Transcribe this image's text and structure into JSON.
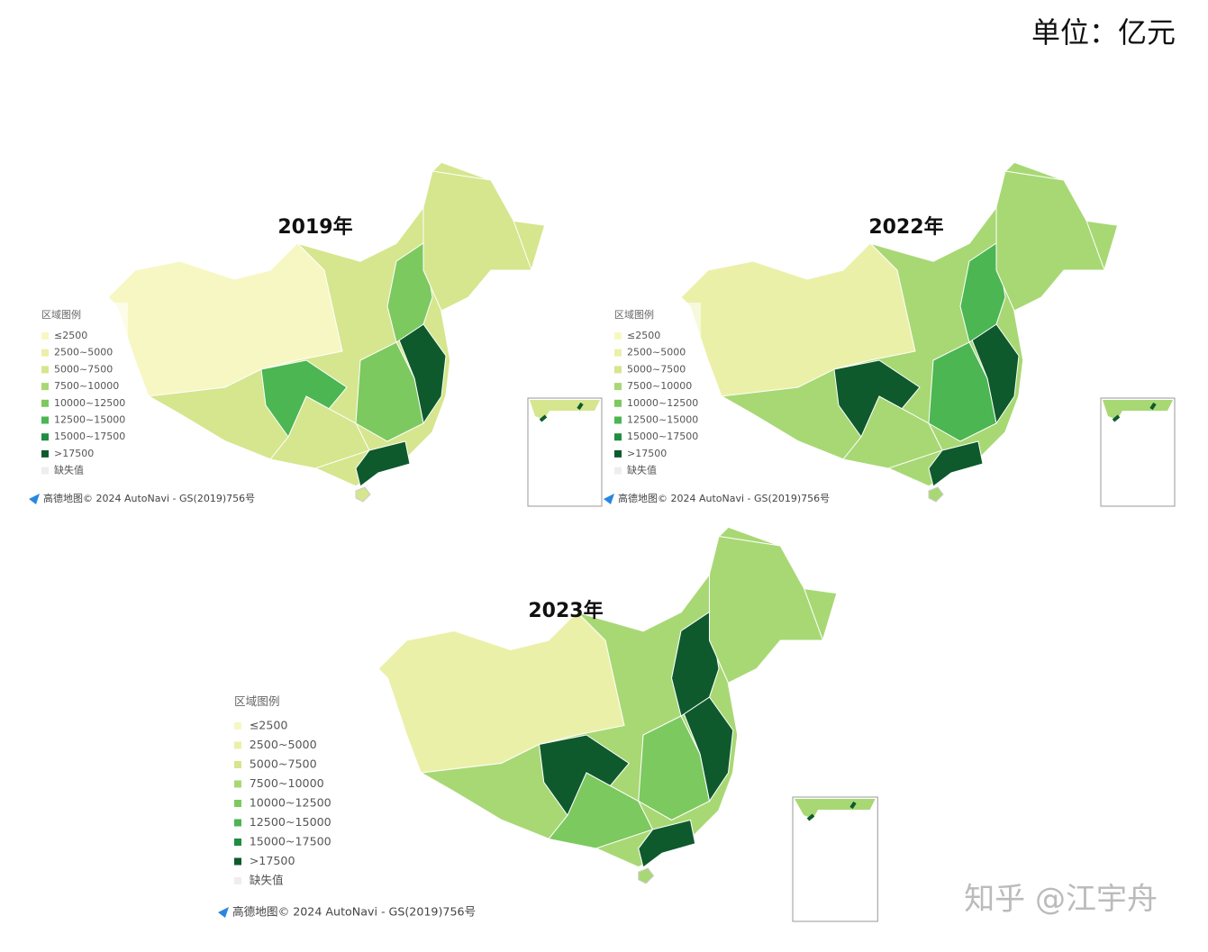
{
  "unit": "单位：亿元",
  "maps": [
    {
      "title": "2019年"
    },
    {
      "title": "2022年"
    },
    {
      "title": "2023年"
    }
  ],
  "legend": {
    "title": "区域图例",
    "items": [
      {
        "label": "≤2500",
        "color": "#f7f7c4"
      },
      {
        "label": "2500~5000",
        "color": "#ebf0a9"
      },
      {
        "label": "5000~7500",
        "color": "#d5e68e"
      },
      {
        "label": "7500~10000",
        "color": "#a8d874"
      },
      {
        "label": "10000~12500",
        "color": "#7cc95f"
      },
      {
        "label": "12500~15000",
        "color": "#4bb652"
      },
      {
        "label": "15000~17500",
        "color": "#1f8e40"
      },
      {
        "label": ">17500",
        "color": "#0e5a2d"
      },
      {
        "label": "缺失值",
        "color": "#eeeeee"
      }
    ]
  },
  "attribution": "高德地图© 2024 AutoNavi - GS(2019)756号",
  "watermark": "知乎 @江宇舟"
}
